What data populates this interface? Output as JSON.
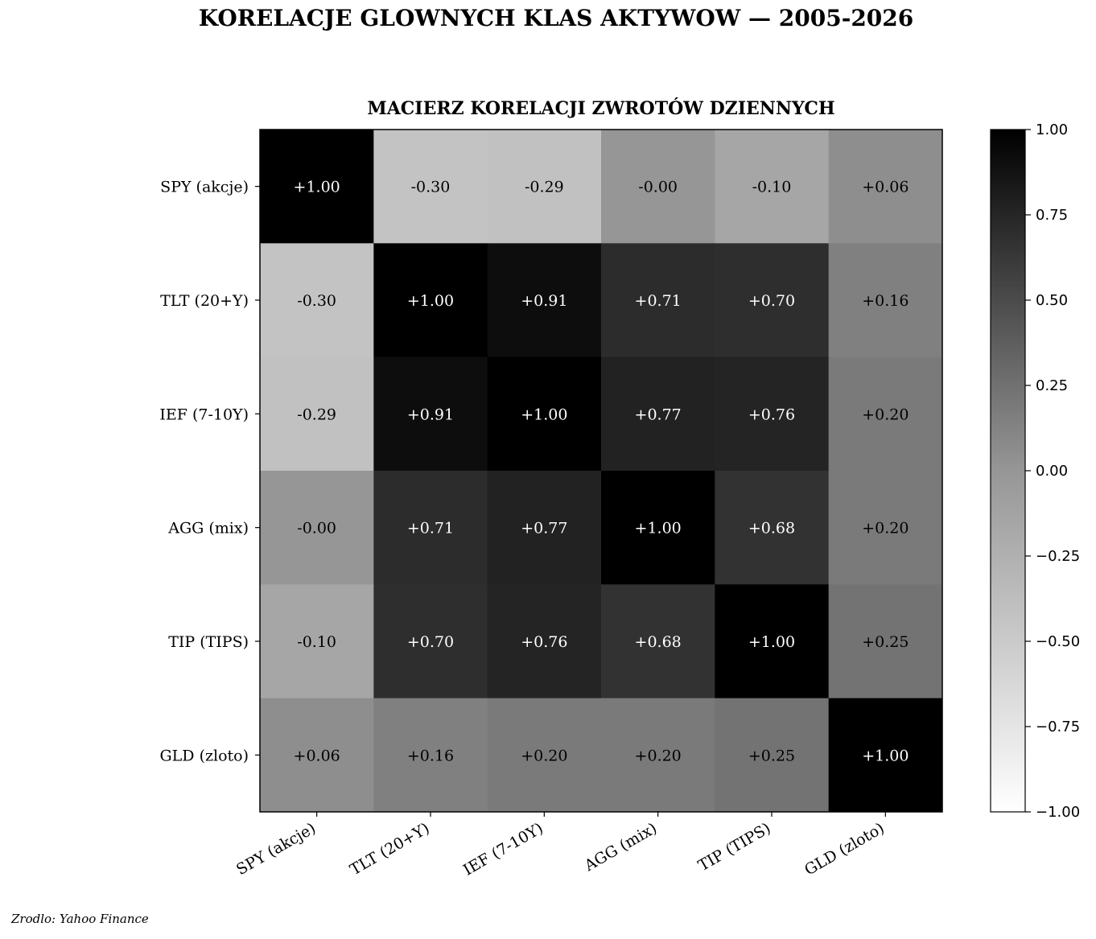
{
  "page": {
    "suptitle": "KORELACJE GLOWNYCH KLAS AKTYWOW — 2005-2026",
    "source": "Zrodlo: Yahoo Finance"
  },
  "chart_data": {
    "type": "heatmap",
    "title": "MACIERZ KORELACJI ZWROTÓW DZIENNYCH",
    "xlabel": "",
    "ylabel": "",
    "categories": [
      "SPY (akcje)",
      "TLT (20+Y)",
      "IEF (7-10Y)",
      "AGG (mix)",
      "TIP (TIPS)",
      "GLD (zloto)"
    ],
    "values": [
      [
        1.0,
        -0.3,
        -0.29,
        -0.0,
        -0.1,
        0.06
      ],
      [
        -0.3,
        1.0,
        0.91,
        0.71,
        0.7,
        0.16
      ],
      [
        -0.29,
        0.91,
        1.0,
        0.77,
        0.76,
        0.2
      ],
      [
        -0.0,
        0.71,
        0.77,
        1.0,
        0.68,
        0.2
      ],
      [
        -0.1,
        0.7,
        0.76,
        0.68,
        1.0,
        0.25
      ],
      [
        0.06,
        0.16,
        0.2,
        0.2,
        0.25,
        1.0
      ]
    ],
    "cell_labels": [
      [
        "+1.00",
        "-0.30",
        "-0.29",
        "-0.00",
        "-0.10",
        "+0.06"
      ],
      [
        "-0.30",
        "+1.00",
        "+0.91",
        "+0.71",
        "+0.70",
        "+0.16"
      ],
      [
        "-0.29",
        "+0.91",
        "+1.00",
        "+0.77",
        "+0.76",
        "+0.20"
      ],
      [
        "-0.00",
        "+0.71",
        "+0.77",
        "+1.00",
        "+0.68",
        "+0.20"
      ],
      [
        "-0.10",
        "+0.70",
        "+0.76",
        "+0.68",
        "+1.00",
        "+0.25"
      ],
      [
        "+0.06",
        "+0.16",
        "+0.20",
        "+0.20",
        "+0.25",
        "+1.00"
      ]
    ],
    "colorbar": {
      "range": [
        -1.0,
        1.0
      ],
      "ticks": [
        1.0,
        0.75,
        0.5,
        0.25,
        0.0,
        -0.25,
        -0.5,
        -0.75,
        -1.0
      ],
      "tick_labels": [
        "1.00",
        "0.75",
        "0.50",
        "0.25",
        "0.00",
        "−0.25",
        "−0.50",
        "−0.75",
        "−1.00"
      ],
      "colormap": "greys",
      "low_color": "#ffffff",
      "high_color": "#000000"
    },
    "grid": false,
    "legend": "colorbar-right"
  }
}
